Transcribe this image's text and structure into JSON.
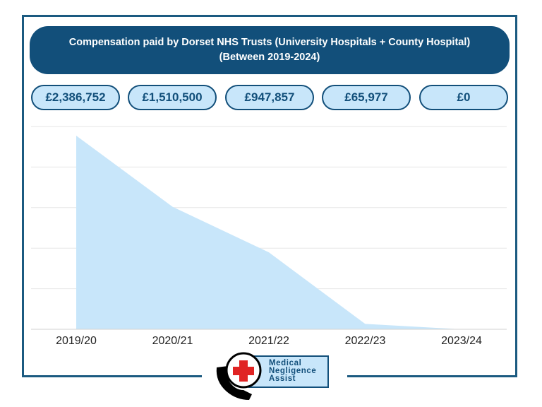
{
  "header": {
    "title_line1": "Compensation paid by Dorset NHS Trusts (University Hospitals + County Hospital)",
    "title_line2": "(Between 2019-2024)"
  },
  "value_pills": [
    "£2,386,752",
    "£1,510,500",
    "£947,857",
    "£65,977",
    "£0"
  ],
  "chart_data": {
    "type": "area",
    "title": "Compensation paid by Dorset NHS Trusts (University Hospitals + County Hospital) (Between 2019-2024)",
    "categories": [
      "2019/20",
      "2020/21",
      "2021/22",
      "2022/23",
      "2023/24"
    ],
    "values": [
      2386752,
      1510500,
      947857,
      65977,
      0
    ],
    "xlabel": "",
    "ylabel": "",
    "ylim": [
      0,
      2500000
    ],
    "grid": true,
    "fill_color": "#c8e6fa"
  },
  "logo": {
    "line1": "Medical",
    "line2": "Negligence",
    "line3": "Assist"
  },
  "colors": {
    "primary": "#124f7a",
    "pill_fill": "#c8e6fa",
    "area_fill": "#c8e6fa",
    "cross": "#e02424"
  }
}
